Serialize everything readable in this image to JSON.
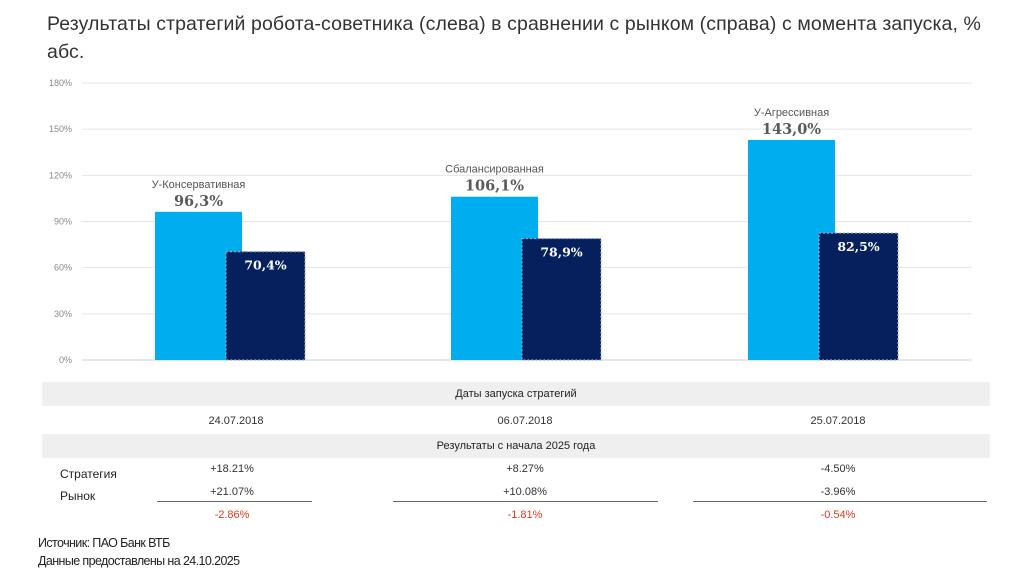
{
  "title": "Результаты стратегий робота-советника (слева) в сравнении с рынком (справа) с момента запуска, % абс.",
  "chart_data": {
    "type": "bar",
    "categories": [
      "У-Консервативная",
      "Сбалансированная",
      "У-Агрессивная"
    ],
    "series": [
      {
        "name": "Стратегия",
        "values": [
          96.3,
          106.1,
          143.0
        ],
        "labels": [
          "96,3%",
          "106,1%",
          "143,0%"
        ],
        "color": "#00aeef"
      },
      {
        "name": "Рынок",
        "values": [
          70.4,
          78.9,
          82.5
        ],
        "labels": [
          "70,4%",
          "78,9%",
          "82,5%"
        ],
        "color": "#06205e"
      }
    ],
    "y_ticks": [
      "0%",
      "30%",
      "60%",
      "90%",
      "120%",
      "150%",
      "180%"
    ],
    "ylim": [
      0,
      180
    ],
    "grid": true
  },
  "table": {
    "launch_header": "Даты запуска стратегий",
    "launch_dates": [
      "24.07.2018",
      "06.07.2018",
      "25.07.2018"
    ],
    "ytd_header": "Результаты с начала 2025 года",
    "row_labels": [
      "Стратегия",
      "Рынок"
    ],
    "strategy": [
      "+18.21%",
      "+8.27%",
      "-4.50%"
    ],
    "market": [
      "+21.07%",
      "+10.08%",
      "-3.96%"
    ],
    "diff": [
      "-2.86%",
      "-1.81%",
      "-0.54%"
    ]
  },
  "source": {
    "line1": "Источник: ПАО Банк ВТБ",
    "line2": "Данные предоставлены на 24.10.2025"
  },
  "colors": {
    "strategy": "#00aeef",
    "market": "#06205e",
    "negative": "#e03a1e"
  }
}
